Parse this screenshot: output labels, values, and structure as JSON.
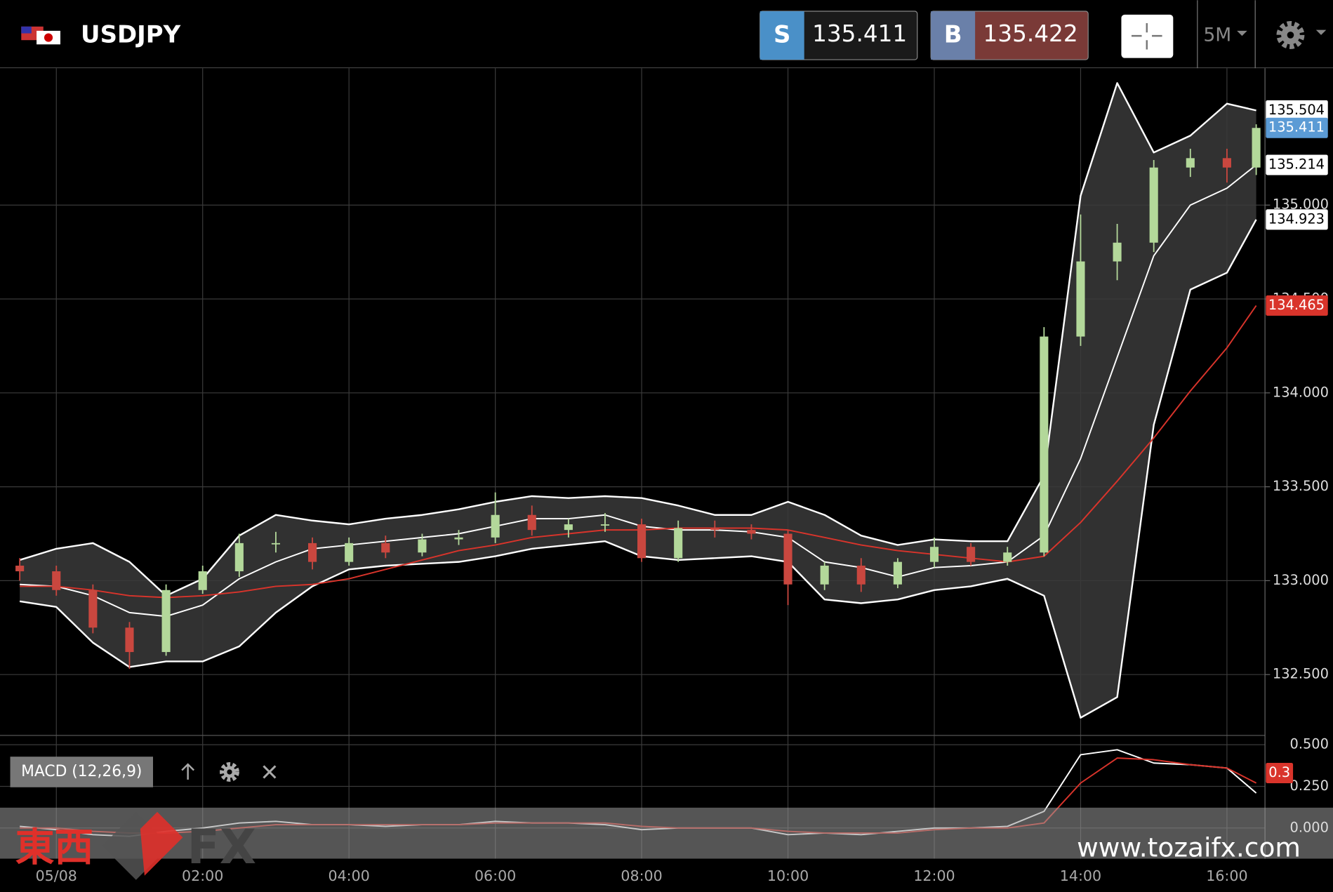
{
  "header": {
    "pair": "USDJPY",
    "sell": {
      "label": "S",
      "price": 135.411
    },
    "buy": {
      "label": "B",
      "price": 135.422
    },
    "timeframe": "5M"
  },
  "chart_data": {
    "type": "candlestick",
    "x": [
      -0.5,
      0,
      0.5,
      1,
      1.5,
      2,
      2.5,
      3,
      3.5,
      4,
      4.5,
      5,
      5.5,
      6,
      6.5,
      7,
      7.5,
      8,
      8.5,
      9,
      9.5,
      10,
      10.5,
      11,
      11.5,
      12,
      12.5,
      13,
      13.5,
      14,
      14.5,
      15,
      15.5,
      16,
      16.4
    ],
    "xlim": [
      -0.77,
      16.52
    ],
    "xticks": [
      {
        "value": 0,
        "label": "05/08"
      },
      {
        "value": 2,
        "label": "02:00"
      },
      {
        "value": 4,
        "label": "04:00"
      },
      {
        "value": 6,
        "label": "06:00"
      },
      {
        "value": 8,
        "label": "08:00"
      },
      {
        "value": 10,
        "label": "10:00"
      },
      {
        "value": 12,
        "label": "12:00"
      },
      {
        "value": 14,
        "label": "14:00"
      },
      {
        "value": 16,
        "label": "16:00"
      }
    ],
    "ylim": [
      132.176,
      135.729
    ],
    "yticks": [
      {
        "value": 132.5,
        "label": "132.500"
      },
      {
        "value": 133,
        "label": "133.000"
      },
      {
        "value": 133.5,
        "label": "133.500"
      },
      {
        "value": 134,
        "label": "134.000"
      },
      {
        "value": 134.5,
        "label": "134.500"
      },
      {
        "value": 135,
        "label": "135.000"
      }
    ],
    "grid": true,
    "open": [
      133.08,
      133.05,
      132.95,
      132.75,
      132.62,
      132.95,
      133.05,
      133.2,
      133.2,
      133.1,
      133.2,
      133.15,
      133.22,
      133.23,
      133.35,
      133.27,
      133.3,
      133.3,
      133.12,
      133.28,
      133.27,
      133.25,
      132.98,
      133.08,
      132.98,
      133.1,
      133.18,
      133.1,
      133.15,
      134.3,
      134.7,
      134.8,
      135.2,
      135.25,
      135.2
    ],
    "high": [
      133.12,
      133.08,
      132.98,
      132.78,
      132.98,
      133.08,
      133.25,
      133.26,
      133.23,
      133.23,
      133.24,
      133.25,
      133.27,
      133.47,
      133.4,
      133.33,
      133.36,
      133.33,
      133.32,
      133.32,
      133.3,
      133.27,
      133.1,
      133.12,
      133.12,
      133.23,
      133.2,
      133.18,
      134.35,
      134.95,
      134.9,
      135.24,
      135.3,
      135.3,
      135.43
    ],
    "low": [
      133.0,
      132.92,
      132.72,
      132.53,
      132.6,
      132.93,
      133.02,
      133.15,
      133.06,
      133.08,
      133.12,
      133.13,
      133.19,
      133.2,
      133.24,
      133.23,
      133.26,
      133.1,
      133.1,
      133.23,
      133.22,
      132.87,
      132.95,
      132.94,
      132.96,
      133.07,
      133.08,
      133.08,
      133.13,
      134.25,
      134.6,
      134.75,
      135.15,
      135.12,
      135.16
    ],
    "close": [
      133.05,
      132.95,
      132.75,
      132.62,
      132.95,
      133.05,
      133.2,
      133.2,
      133.1,
      133.2,
      133.15,
      133.22,
      133.23,
      133.35,
      133.27,
      133.3,
      133.3,
      133.12,
      133.28,
      133.27,
      133.25,
      132.98,
      133.08,
      132.98,
      133.1,
      133.18,
      133.1,
      133.15,
      134.3,
      134.7,
      134.8,
      135.2,
      135.25,
      135.2,
      135.411
    ],
    "up_color": "#b3d89a",
    "down_color": "#c9473f",
    "upper_band": [
      133.11,
      133.17,
      133.2,
      133.1,
      132.92,
      133.01,
      133.24,
      133.35,
      133.32,
      133.3,
      133.33,
      133.35,
      133.38,
      133.42,
      133.45,
      133.44,
      133.45,
      133.44,
      133.4,
      133.35,
      133.35,
      133.42,
      133.35,
      133.24,
      133.19,
      133.22,
      133.21,
      133.21,
      133.56,
      135.05,
      135.65,
      135.28,
      135.37,
      135.54,
      135.504
    ],
    "middle_band": [
      132.98,
      132.97,
      132.92,
      132.83,
      132.81,
      132.87,
      133.01,
      133.1,
      133.17,
      133.19,
      133.21,
      133.23,
      133.25,
      133.29,
      133.33,
      133.33,
      133.35,
      133.29,
      133.27,
      133.27,
      133.26,
      133.23,
      133.1,
      133.07,
      133.02,
      133.07,
      133.08,
      133.1,
      133.24,
      133.65,
      134.19,
      134.73,
      135.0,
      135.09,
      135.214
    ],
    "lower_band": [
      132.89,
      132.86,
      132.67,
      132.54,
      132.57,
      132.57,
      132.65,
      132.83,
      132.97,
      133.06,
      133.08,
      133.09,
      133.1,
      133.13,
      133.17,
      133.19,
      133.21,
      133.13,
      133.11,
      133.12,
      133.13,
      133.1,
      132.9,
      132.88,
      132.9,
      132.95,
      132.97,
      133.01,
      132.92,
      132.27,
      132.38,
      133.83,
      134.55,
      134.64,
      134.923
    ],
    "band_color": "#ffffff",
    "ma": [
      132.97,
      132.97,
      132.95,
      132.92,
      132.91,
      132.92,
      132.94,
      132.97,
      132.98,
      133.01,
      133.06,
      133.11,
      133.16,
      133.19,
      133.23,
      133.25,
      133.27,
      133.27,
      133.28,
      133.28,
      133.28,
      133.27,
      133.23,
      133.19,
      133.16,
      133.14,
      133.12,
      133.1,
      133.13,
      133.31,
      133.53,
      133.76,
      134.01,
      134.24,
      134.465
    ],
    "ma_color": "#d9342b",
    "last_color": "#5b9bd5",
    "indicator": {
      "label": "MACD (12,26,9)",
      "ylim": [
        -0.184,
        0.556
      ],
      "yticks": [
        {
          "value": 0,
          "label": "0.000"
        },
        {
          "value": 0.25,
          "label": "0.250"
        },
        {
          "value": 0.5,
          "label": "0.500"
        }
      ],
      "macd": [
        0.01,
        -0.01,
        -0.04,
        -0.05,
        -0.02,
        0.0,
        0.03,
        0.04,
        0.02,
        0.02,
        0.01,
        0.02,
        0.02,
        0.04,
        0.03,
        0.03,
        0.02,
        -0.01,
        0.0,
        0.0,
        0.0,
        -0.04,
        -0.03,
        -0.04,
        -0.02,
        0.0,
        0.0,
        0.01,
        0.1,
        0.44,
        0.47,
        0.39,
        0.38,
        0.36,
        0.21
      ],
      "signal": [
        0.0,
        0.0,
        -0.02,
        -0.03,
        -0.03,
        -0.02,
        0.0,
        0.02,
        0.02,
        0.02,
        0.02,
        0.02,
        0.02,
        0.03,
        0.03,
        0.03,
        0.03,
        0.01,
        0.0,
        0.0,
        0.0,
        -0.02,
        -0.03,
        -0.03,
        -0.03,
        -0.01,
        0.0,
        0.0,
        0.03,
        0.27,
        0.42,
        0.41,
        0.38,
        0.36,
        0.27
      ],
      "macd_color": "#ffffff",
      "signal_color": "#d9342b",
      "tag": {
        "value": 0.33,
        "label": "0.3"
      }
    }
  },
  "watermark": {
    "brand": "東西",
    "fx": "FX",
    "url": "www.tozaifx.com"
  }
}
